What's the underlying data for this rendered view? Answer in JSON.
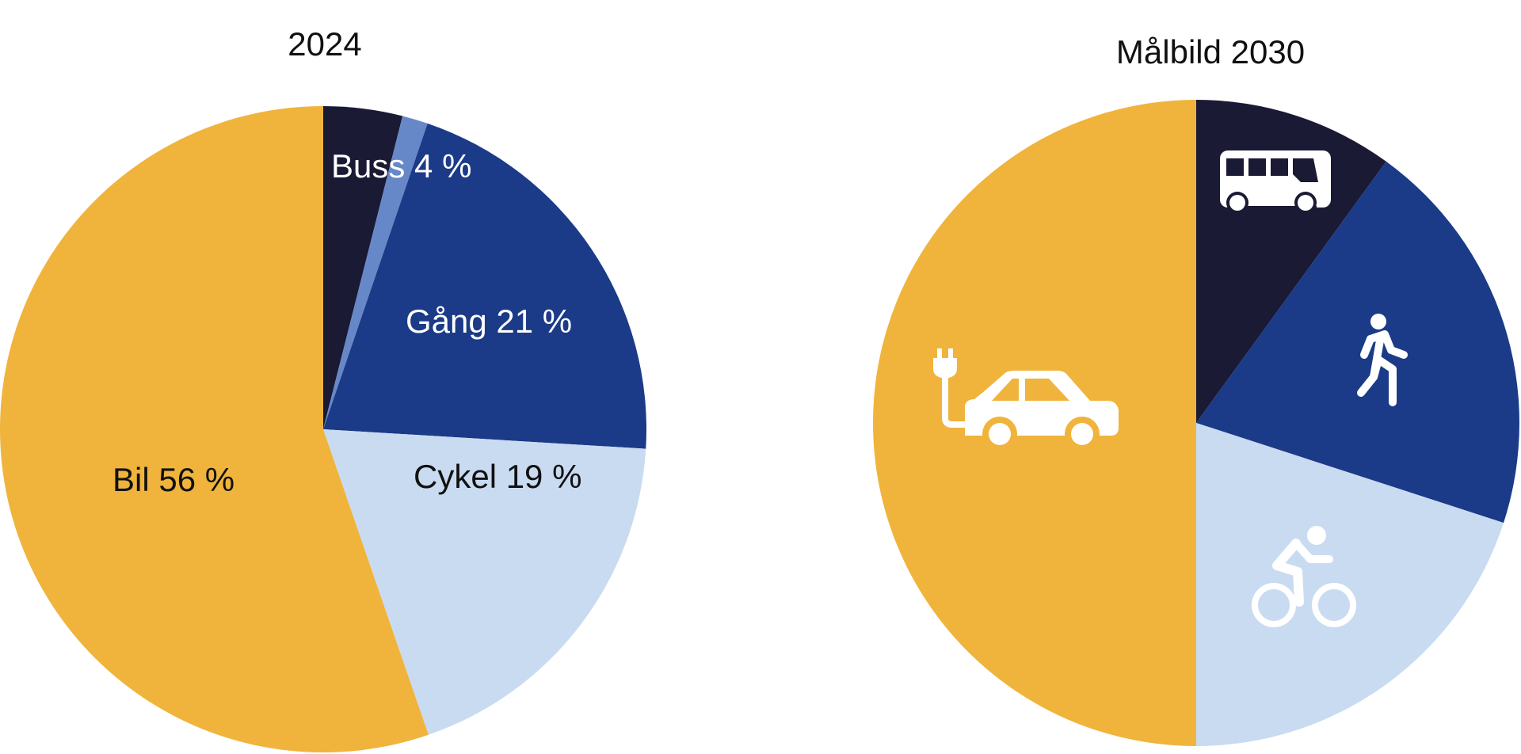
{
  "chart_data": [
    {
      "type": "pie",
      "title": "2024",
      "start_angle_deg": 0,
      "direction": "clockwise",
      "slices": [
        {
          "name": "Buss",
          "value": 4,
          "label": "Buss 4 %",
          "color": "#1a1a35",
          "label_color": "#ffffff"
        },
        {
          "name": "",
          "value": 1.3,
          "label": "",
          "color": "#6688c8",
          "label_color": "#ffffff"
        },
        {
          "name": "Gång",
          "value": 21,
          "label": "Gång 21 %",
          "color": "#1b3b88",
          "label_color": "#ffffff"
        },
        {
          "name": "Cykel",
          "value": 19,
          "label": "Cykel 19 %",
          "color": "#c9dbf1",
          "label_color": "#111111"
        },
        {
          "name": "Bil",
          "value": 56,
          "label": "Bil 56 %",
          "color": "#f0b43c",
          "label_color": "#111111"
        }
      ]
    },
    {
      "type": "pie",
      "title": "Målbild 2030",
      "start_angle_deg": 0,
      "direction": "clockwise",
      "slices": [
        {
          "name": "Buss",
          "value": 10,
          "icon": "bus-icon",
          "color": "#1a1a35"
        },
        {
          "name": "Gång",
          "value": 20,
          "icon": "walking-person-icon",
          "color": "#1b3b88"
        },
        {
          "name": "Cykel",
          "value": 20,
          "icon": "bicycle-icon",
          "color": "#c9dbf1"
        },
        {
          "name": "Bil",
          "value": 50,
          "icon": "electric-car-icon",
          "color": "#f0b43c"
        }
      ]
    }
  ]
}
